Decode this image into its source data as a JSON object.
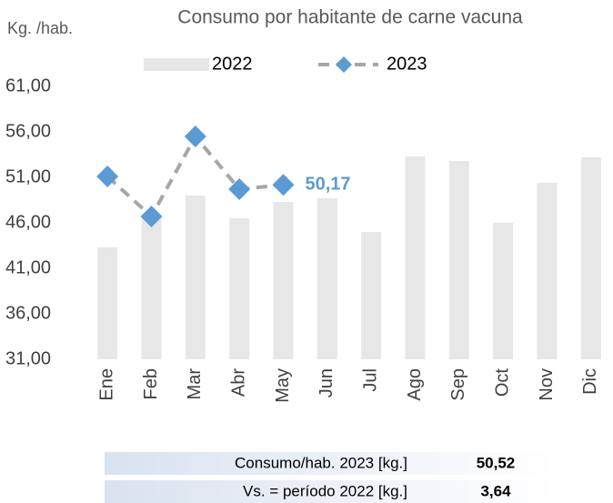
{
  "chart_data": {
    "type": "bar_line",
    "title": "Consumo por habitante de carne vacuna",
    "y_label": "Kg. /hab.",
    "categories": [
      "Ene",
      "Feb",
      "Mar",
      "Abr",
      "May",
      "Jun",
      "Jul",
      "Ago",
      "Sep",
      "Oct",
      "Nov",
      "Dic"
    ],
    "series": [
      {
        "name": "2022",
        "type": "bar",
        "color": "#e7e7e7",
        "values": [
          43.3,
          46.8,
          49.0,
          46.5,
          48.3,
          48.7,
          45.0,
          53.3,
          52.8,
          46.0,
          50.4,
          53.2
        ]
      },
      {
        "name": "2023",
        "type": "line",
        "color": "#5b9bd5",
        "line_color": "#a6a6a6",
        "values": [
          51.1,
          46.7,
          55.5,
          49.7,
          50.17,
          null,
          null,
          null,
          null,
          null,
          null,
          null
        ],
        "value_labels": [
          null,
          null,
          null,
          null,
          "50,17",
          null,
          null,
          null,
          null,
          null,
          null,
          null
        ]
      }
    ],
    "ylim": [
      31,
      61
    ],
    "yticks": [
      {
        "value": 31,
        "label": "31,00"
      },
      {
        "value": 36,
        "label": "36,00"
      },
      {
        "value": 41,
        "label": "41,00"
      },
      {
        "value": 46,
        "label": "46,00"
      },
      {
        "value": 51,
        "label": "51,00"
      },
      {
        "value": 56,
        "label": "56,00"
      },
      {
        "value": 61,
        "label": "61,00"
      }
    ],
    "grid": false,
    "legend": "top"
  },
  "summary": [
    {
      "label": "Consumo/hab. 2023 [kg.]",
      "value": "50,52"
    },
    {
      "label": "Vs. = período 2022 [kg.]",
      "value": "3,64"
    }
  ]
}
